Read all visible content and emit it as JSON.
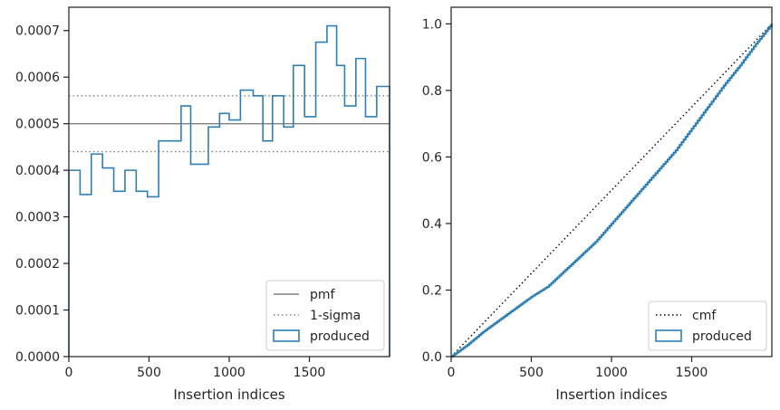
{
  "colors": {
    "produced": "#2f7fb7",
    "pmf": "#808080",
    "sigma": "#808080",
    "cmf": "#000000",
    "axes": "#262626"
  },
  "chart_data": [
    {
      "type": "step",
      "xlabel": "Insertion indices",
      "ylabel": "",
      "xlim": [
        0,
        2000
      ],
      "ylim": [
        0,
        0.00075
      ],
      "xticks": [
        0,
        500,
        1000,
        1500
      ],
      "xtick_labels": [
        "0",
        "500",
        "1000",
        "1500"
      ],
      "yticks": [
        0,
        0.0001,
        0.0002,
        0.0003,
        0.0004,
        0.0005,
        0.0006,
        0.0007
      ],
      "ytick_labels": [
        "0.0000",
        "0.0001",
        "0.0002",
        "0.0003",
        "0.0004",
        "0.0005",
        "0.0006",
        "0.0007"
      ],
      "bin_edges": [
        0,
        70,
        140,
        210,
        280,
        350,
        420,
        490,
        560,
        680,
        700,
        760,
        820,
        870,
        940,
        1000,
        1070,
        1150,
        1210,
        1270,
        1340,
        1400,
        1470,
        1540,
        1610,
        1670,
        1720,
        1790,
        1850,
        1920,
        2000
      ],
      "series": [
        {
          "name": "produced",
          "kind": "histogram-step",
          "values": [
            0.0004,
            0.000348,
            0.000435,
            0.000405,
            0.000355,
            0.0004,
            0.000355,
            0.000343,
            0.000463,
            0.000463,
            0.000538,
            0.000413,
            0.000413,
            0.000493,
            0.000522,
            0.000508,
            0.000572,
            0.00056,
            0.000463,
            0.00056,
            0.000493,
            0.000625,
            0.000515,
            0.000675,
            0.00071,
            0.000625,
            0.000538,
            0.00064,
            0.000515,
            0.00058
          ]
        },
        {
          "name": "pmf",
          "kind": "hline",
          "value": 0.0005
        },
        {
          "name": "1-sigma",
          "kind": "hline-pair",
          "values": [
            0.00044,
            0.00056
          ]
        }
      ],
      "legend": {
        "placement": "lower right",
        "entries": [
          "pmf",
          "1-sigma",
          "produced"
        ]
      }
    },
    {
      "type": "line",
      "xlabel": "Insertion indices",
      "ylabel": "",
      "xlim": [
        0,
        2000
      ],
      "ylim": [
        0,
        1.05
      ],
      "xticks": [
        0,
        500,
        1000,
        1500
      ],
      "xtick_labels": [
        "0",
        "500",
        "1000",
        "1500"
      ],
      "yticks": [
        0,
        0.2,
        0.4,
        0.6,
        0.8,
        1.0
      ],
      "ytick_labels": [
        "0.0",
        "0.2",
        "0.4",
        "0.6",
        "0.8",
        "1.0"
      ],
      "series": [
        {
          "name": "cmf",
          "kind": "dotted-line",
          "x": [
            0,
            2000
          ],
          "y": [
            0,
            1.0
          ]
        },
        {
          "name": "produced",
          "kind": "step-line",
          "x": [
            0,
            100,
            200,
            300,
            400,
            500,
            600,
            700,
            800,
            900,
            1000,
            1100,
            1200,
            1300,
            1400,
            1500,
            1600,
            1700,
            1800,
            1900,
            2000
          ],
          "y": [
            0,
            0.035,
            0.075,
            0.11,
            0.145,
            0.18,
            0.21,
            0.255,
            0.3,
            0.345,
            0.4,
            0.455,
            0.51,
            0.565,
            0.62,
            0.685,
            0.75,
            0.815,
            0.875,
            0.94,
            1.0
          ]
        }
      ],
      "legend": {
        "placement": "lower right",
        "entries": [
          "cmf",
          "produced"
        ]
      }
    }
  ]
}
